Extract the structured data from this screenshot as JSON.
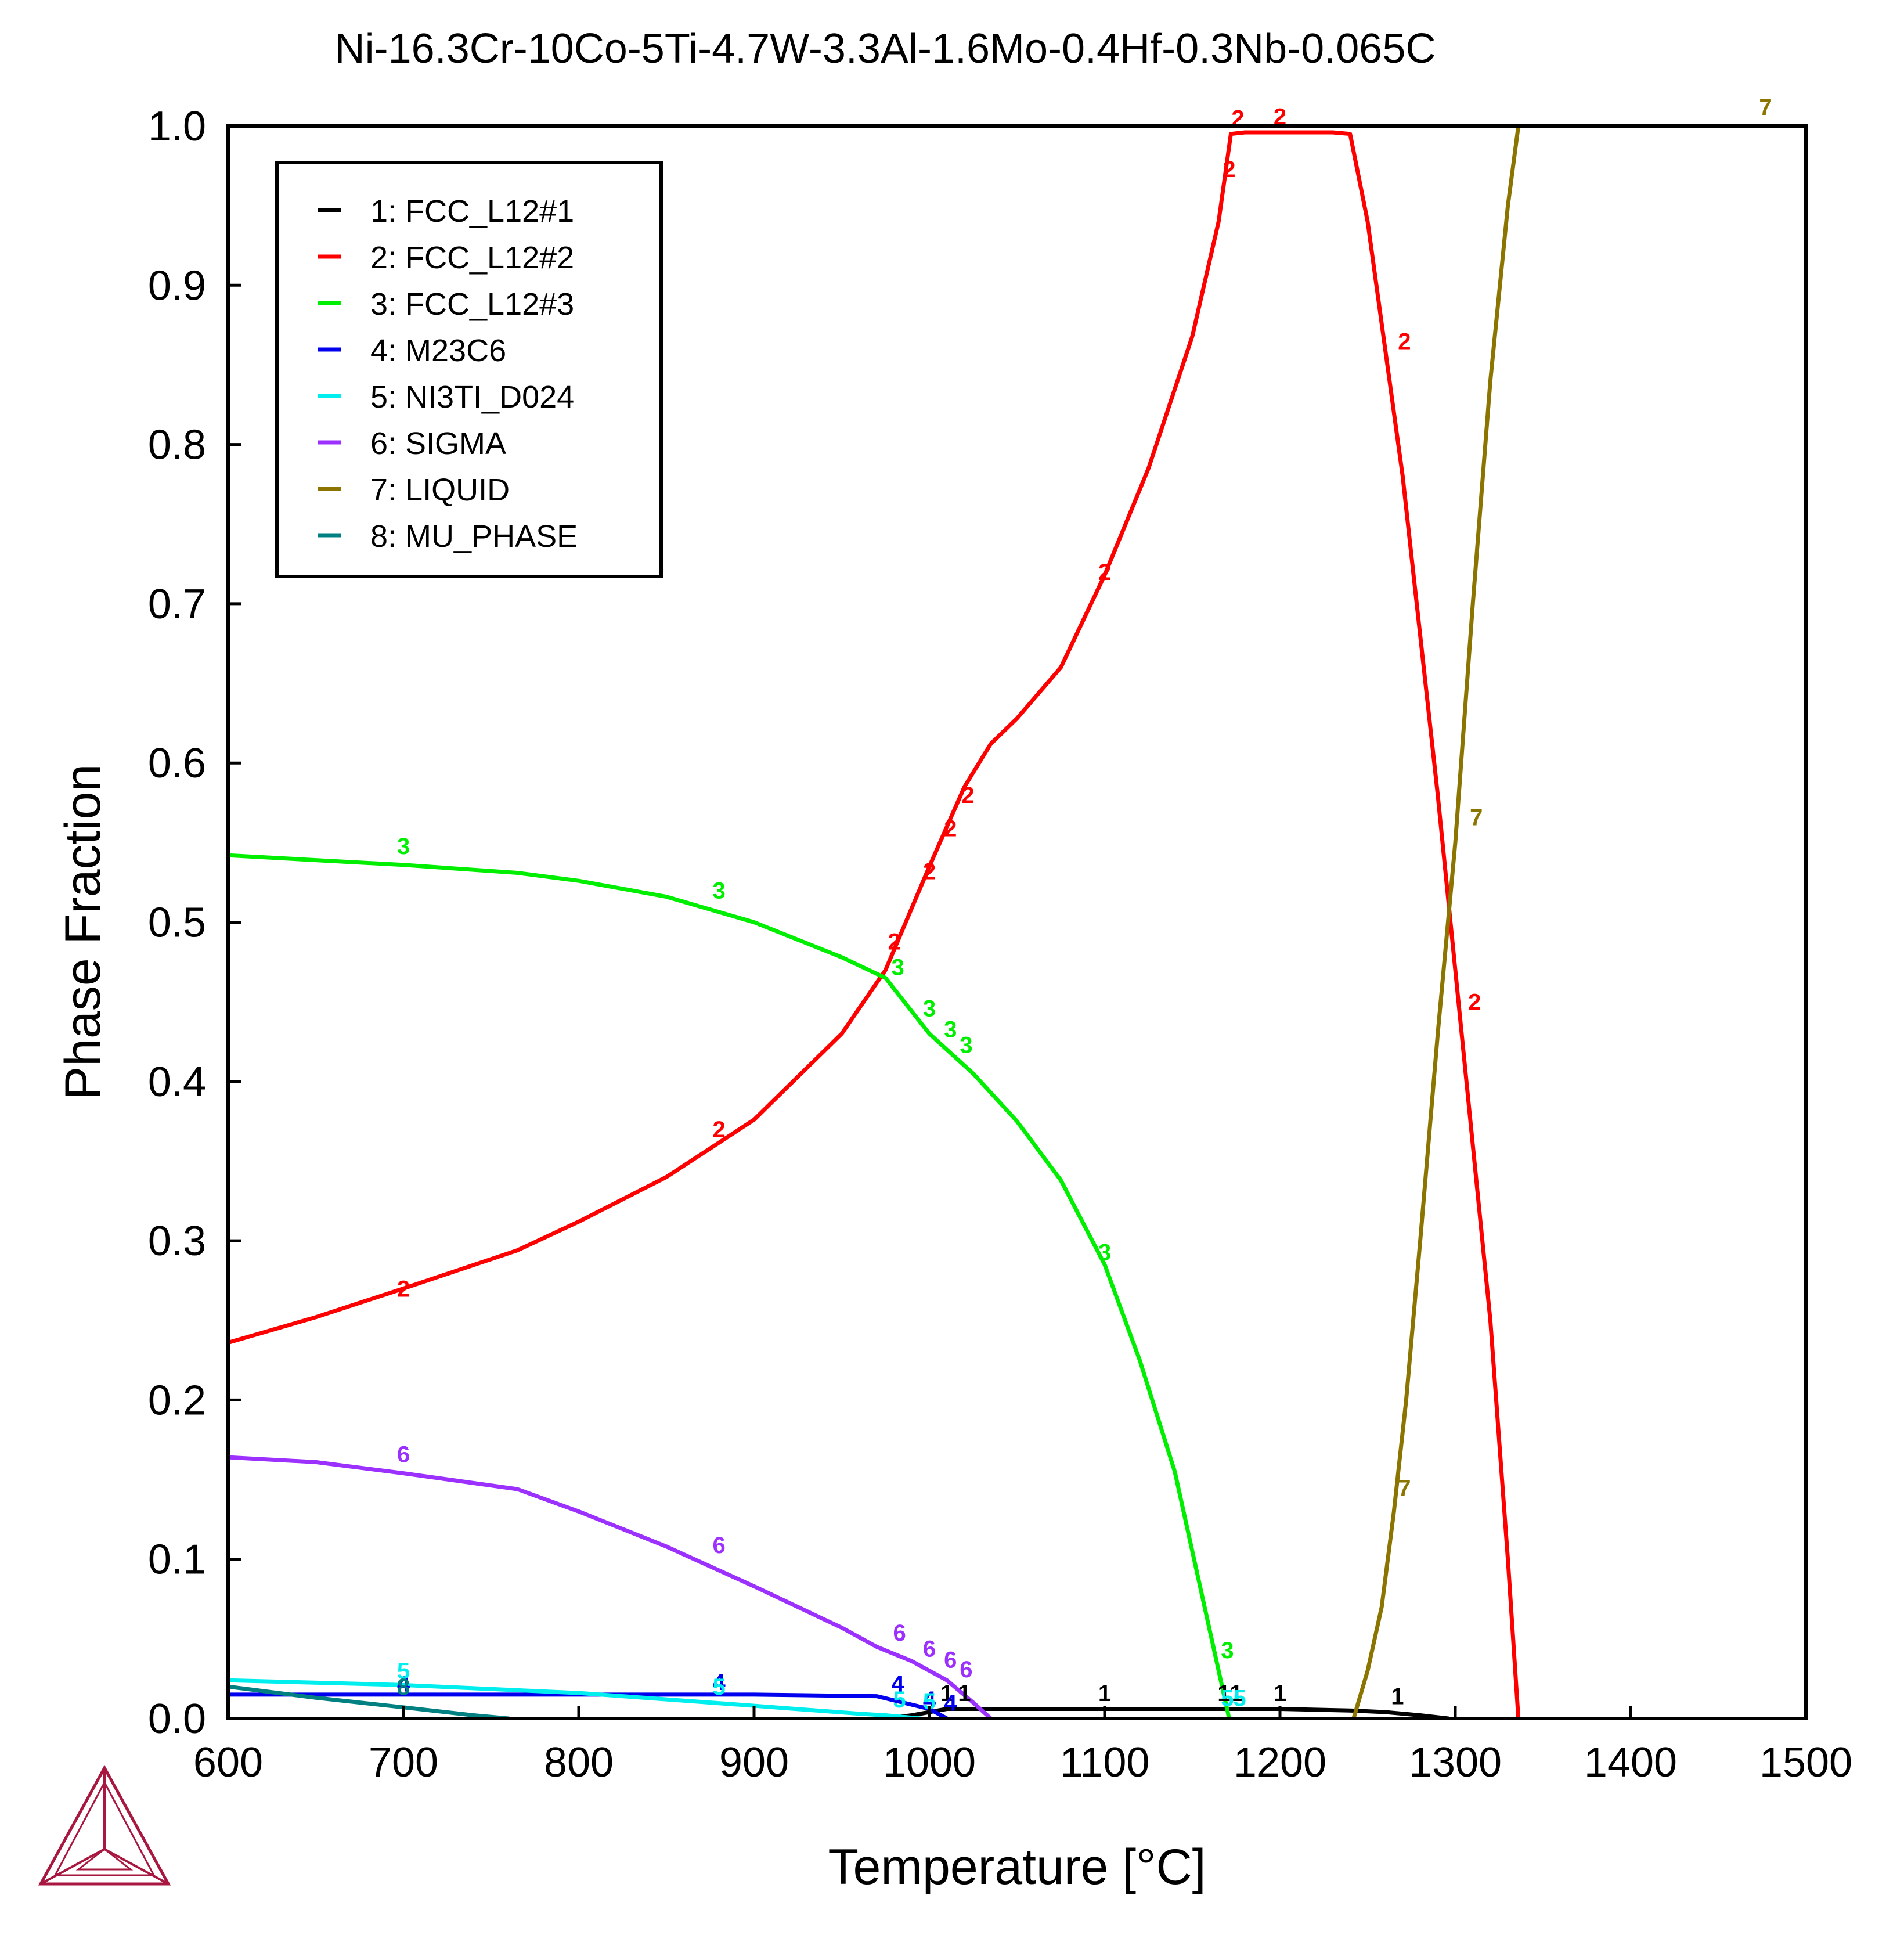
{
  "chart_data": {
    "type": "line",
    "title": "Ni-16.3Cr-10Co-5Ti-4.7W-3.3Al-1.6Mo-0.4Hf-0.3Nb-0.065C",
    "xlabel": "Temperature [°C]",
    "ylabel": "Phase Fraction",
    "xlim": [
      600,
      1500
    ],
    "ylim": [
      0,
      1.0
    ],
    "x_ticks": [
      "600",
      "700",
      "800",
      "900",
      "1000",
      "1100",
      "1200",
      "1300",
      "1400",
      "1500"
    ],
    "y_ticks": [
      "0.0",
      "0.1",
      "0.2",
      "0.3",
      "0.4",
      "0.5",
      "0.6",
      "0.7",
      "0.8",
      "0.9",
      "1.0"
    ],
    "grid": false,
    "legend_position": "top-left",
    "logo": "thermo-calc-triangle-logo",
    "series": [
      {
        "name": "1: FCC_L12#1",
        "label": "1",
        "color": "#000000",
        "points": [
          [
            975,
            0.0
          ],
          [
            990,
            0.002
          ],
          [
            1000,
            0.004
          ],
          [
            1010,
            0.006
          ],
          [
            1030,
            0.006
          ],
          [
            1100,
            0.006
          ],
          [
            1170,
            0.006
          ],
          [
            1200,
            0.006
          ],
          [
            1240,
            0.005
          ],
          [
            1260,
            0.004
          ],
          [
            1280,
            0.002
          ],
          [
            1296,
            0.0
          ]
        ],
        "markers": [
          [
            1010,
            0.016
          ],
          [
            1020,
            0.016
          ],
          [
            1100,
            0.016
          ],
          [
            1168,
            0.016
          ],
          [
            1175,
            0.016
          ],
          [
            1200,
            0.016
          ],
          [
            1267,
            0.014
          ]
        ]
      },
      {
        "name": "2: FCC_L12#2",
        "label": "2",
        "color": "#ff0000",
        "points": [
          [
            600,
            0.236
          ],
          [
            650,
            0.252
          ],
          [
            700,
            0.27
          ],
          [
            765,
            0.294
          ],
          [
            800,
            0.312
          ],
          [
            850,
            0.34
          ],
          [
            900,
            0.376
          ],
          [
            950,
            0.43
          ],
          [
            975,
            0.47
          ],
          [
            1000,
            0.535
          ],
          [
            1020,
            0.585
          ],
          [
            1035,
            0.612
          ],
          [
            1050,
            0.628
          ],
          [
            1075,
            0.66
          ],
          [
            1100,
            0.718
          ],
          [
            1125,
            0.785
          ],
          [
            1150,
            0.868
          ],
          [
            1165,
            0.94
          ],
          [
            1172,
            0.995
          ],
          [
            1180,
            0.996
          ],
          [
            1200,
            0.996
          ],
          [
            1230,
            0.996
          ],
          [
            1240,
            0.995
          ],
          [
            1250,
            0.94
          ],
          [
            1260,
            0.86
          ],
          [
            1270,
            0.78
          ],
          [
            1280,
            0.68
          ],
          [
            1290,
            0.58
          ],
          [
            1300,
            0.47
          ],
          [
            1310,
            0.36
          ],
          [
            1320,
            0.25
          ],
          [
            1330,
            0.1
          ],
          [
            1336,
            0.0
          ]
        ],
        "markers": [
          [
            700,
            0.27
          ],
          [
            880,
            0.37
          ],
          [
            980,
            0.488
          ],
          [
            1000,
            0.532
          ],
          [
            1012,
            0.559
          ],
          [
            1022,
            0.58
          ],
          [
            1100,
            0.72
          ],
          [
            1171,
            0.973
          ],
          [
            1176,
            1.005
          ],
          [
            1200,
            1.006
          ],
          [
            1271,
            0.865
          ],
          [
            1311,
            0.45
          ]
        ]
      },
      {
        "name": "3: FCC_L12#3",
        "label": "3",
        "color": "#00ee00",
        "points": [
          [
            600,
            0.542
          ],
          [
            700,
            0.536
          ],
          [
            765,
            0.531
          ],
          [
            800,
            0.526
          ],
          [
            850,
            0.516
          ],
          [
            900,
            0.5
          ],
          [
            950,
            0.478
          ],
          [
            975,
            0.465
          ],
          [
            1000,
            0.43
          ],
          [
            1025,
            0.405
          ],
          [
            1050,
            0.375
          ],
          [
            1075,
            0.338
          ],
          [
            1100,
            0.285
          ],
          [
            1120,
            0.225
          ],
          [
            1140,
            0.155
          ],
          [
            1155,
            0.08
          ],
          [
            1168,
            0.015
          ],
          [
            1171,
            0.0
          ]
        ],
        "markers": [
          [
            700,
            0.548
          ],
          [
            880,
            0.52
          ],
          [
            982,
            0.472
          ],
          [
            1000,
            0.446
          ],
          [
            1012,
            0.433
          ],
          [
            1021,
            0.423
          ],
          [
            1100,
            0.293
          ],
          [
            1170,
            0.043
          ]
        ]
      },
      {
        "name": "4: M23C6",
        "label": "4",
        "color": "#0000ee",
        "points": [
          [
            600,
            0.015
          ],
          [
            700,
            0.015
          ],
          [
            800,
            0.015
          ],
          [
            900,
            0.015
          ],
          [
            970,
            0.014
          ],
          [
            985,
            0.01
          ],
          [
            1000,
            0.006
          ],
          [
            1010,
            0.0
          ]
        ],
        "markers": [
          [
            700,
            0.022
          ],
          [
            880,
            0.023
          ],
          [
            982,
            0.022
          ],
          [
            1000,
            0.012
          ],
          [
            1012,
            0.01
          ]
        ]
      },
      {
        "name": "5: NI3TI_D024",
        "label": "5",
        "color": "#00eeee",
        "points": [
          [
            600,
            0.024
          ],
          [
            700,
            0.021
          ],
          [
            800,
            0.016
          ],
          [
            900,
            0.008
          ],
          [
            960,
            0.003
          ],
          [
            975,
            0.002
          ],
          [
            995,
            0.0
          ]
        ],
        "markers": [
          [
            700,
            0.03
          ],
          [
            880,
            0.02
          ],
          [
            983,
            0.012
          ],
          [
            1000,
            0.011
          ],
          [
            1170,
            0.013
          ],
          [
            1177,
            0.013
          ]
        ]
      },
      {
        "name": "6: SIGMA",
        "label": "6",
        "color": "#9b30ff",
        "points": [
          [
            600,
            0.164
          ],
          [
            650,
            0.161
          ],
          [
            700,
            0.154
          ],
          [
            765,
            0.144
          ],
          [
            800,
            0.13
          ],
          [
            850,
            0.108
          ],
          [
            900,
            0.083
          ],
          [
            950,
            0.057
          ],
          [
            970,
            0.045
          ],
          [
            990,
            0.036
          ],
          [
            1010,
            0.024
          ],
          [
            1025,
            0.01
          ],
          [
            1035,
            0.0
          ]
        ],
        "markers": [
          [
            700,
            0.166
          ],
          [
            880,
            0.109
          ],
          [
            983,
            0.054
          ],
          [
            1000,
            0.044
          ],
          [
            1012,
            0.037
          ],
          [
            1021,
            0.031
          ]
        ]
      },
      {
        "name": "7: LIQUID",
        "label": "7",
        "color": "#8b7500",
        "points": [
          [
            1242,
            0.0
          ],
          [
            1250,
            0.03
          ],
          [
            1258,
            0.07
          ],
          [
            1265,
            0.13
          ],
          [
            1272,
            0.2
          ],
          [
            1280,
            0.3
          ],
          [
            1290,
            0.43
          ],
          [
            1300,
            0.55
          ],
          [
            1310,
            0.7
          ],
          [
            1320,
            0.84
          ],
          [
            1330,
            0.95
          ],
          [
            1336,
            1.0
          ]
        ],
        "markers": [
          [
            1271,
            0.145
          ],
          [
            1312,
            0.566
          ],
          [
            1477,
            1.012
          ]
        ]
      },
      {
        "name": "8: MU_PHASE",
        "label": "8",
        "color": "#008080",
        "points": [
          [
            600,
            0.02
          ],
          [
            650,
            0.013
          ],
          [
            700,
            0.007
          ],
          [
            740,
            0.002
          ],
          [
            760,
            0.0
          ]
        ],
        "markers": [
          [
            700,
            0.02
          ]
        ]
      }
    ]
  }
}
